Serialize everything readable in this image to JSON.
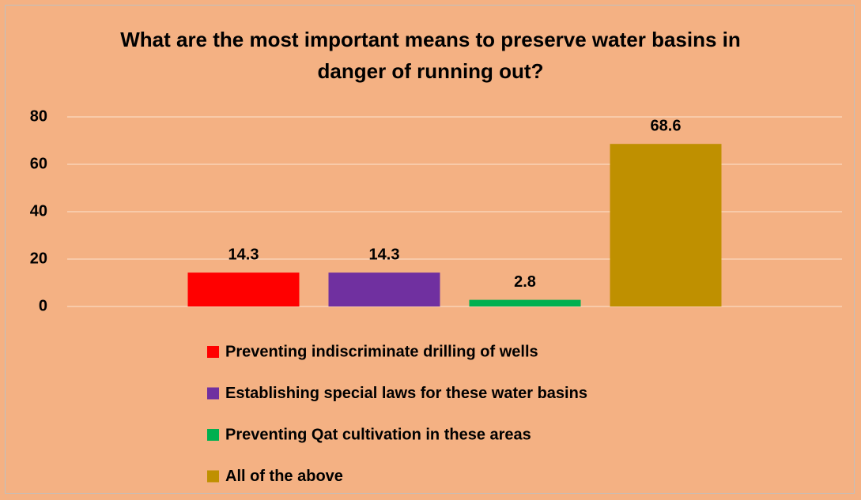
{
  "chart_data": {
    "type": "bar",
    "title": "What are the most important means to preserve water basins in danger of running out?",
    "series": [
      {
        "name": "Preventing indiscriminate drilling of wells",
        "color": "#ff0000",
        "values": [
          14.3
        ]
      },
      {
        "name": "Establishing special laws for these water basins",
        "color": "#7030a0",
        "values": [
          14.3
        ]
      },
      {
        "name": "Preventing Qat cultivation in these areas",
        "color": "#00b050",
        "values": [
          2.8
        ]
      },
      {
        "name": "All of the above",
        "color": "#bf9000",
        "values": [
          68.6
        ]
      }
    ],
    "ylim": [
      0,
      80
    ],
    "yticks": [
      0,
      20,
      40,
      60,
      80
    ],
    "grid": true,
    "legend": "bottom"
  }
}
